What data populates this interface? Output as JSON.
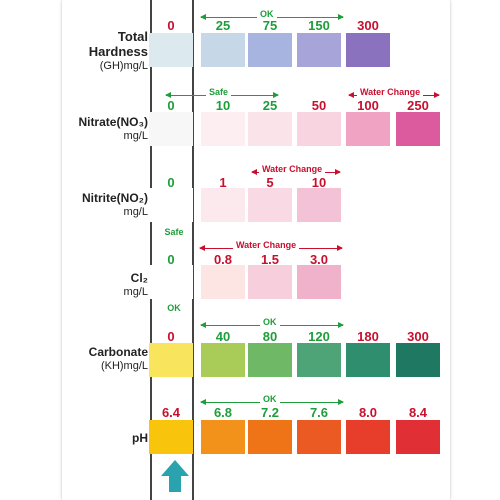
{
  "colors": {
    "green_text": "#1e9e3a",
    "red_text": "#c8102e",
    "arrow": "#2aa3ae"
  },
  "params": {
    "gh": {
      "name": "Total",
      "name2": "Hardness",
      "unit": "(GH)mg/L"
    },
    "no3": {
      "name": "Nitrate(NO₃)",
      "unit": "mg/L"
    },
    "no2": {
      "name": "Nitrite(NO₂)",
      "unit": "mg/L"
    },
    "cl": {
      "name": "Cl₂",
      "unit": "mg/L"
    },
    "kh": {
      "name": "Carbonate",
      "unit": "(KH)mg/L"
    },
    "ph": {
      "name": "pH"
    }
  },
  "labels": {
    "ok": "OK",
    "safe": "Safe",
    "water_change": "Water Change"
  },
  "rows": {
    "gh": {
      "values": [
        "0",
        "25",
        "75",
        "150",
        "300"
      ],
      "value_colors": [
        "red",
        "green",
        "green",
        "green",
        "red"
      ],
      "swatches": [
        "#dce9ef",
        "#c6d7e8",
        "#a8b4e0",
        "#a7a4da",
        "#8b72be"
      ]
    },
    "no3": {
      "values": [
        "0",
        "10",
        "25",
        "50",
        "100",
        "250"
      ],
      "value_colors": [
        "green",
        "green",
        "green",
        "red",
        "red",
        "red"
      ],
      "swatches": [
        "#f7f7f7",
        "#fdeef2",
        "#fbe3ea",
        "#f8d3e0",
        "#f0a3c3",
        "#dc5b9f"
      ]
    },
    "no2": {
      "values": [
        "0",
        "1",
        "5",
        "10"
      ],
      "value_colors": [
        "green",
        "red",
        "red",
        "red"
      ],
      "swatches": [
        "#ffffff",
        "#fbe9ee",
        "#f9d9e4",
        "#f4c2d7"
      ]
    },
    "cl": {
      "values": [
        "0",
        "0.8",
        "1.5",
        "3.0"
      ],
      "value_colors": [
        "green",
        "red",
        "red",
        "red"
      ],
      "swatches": [
        "#ffffff",
        "#fde5e4",
        "#f7cfdc",
        "#f0b2cb"
      ]
    },
    "kh": {
      "values": [
        "0",
        "40",
        "80",
        "120",
        "180",
        "300"
      ],
      "value_colors": [
        "red",
        "green",
        "green",
        "green",
        "red",
        "red"
      ],
      "swatches": [
        "#f9e55d",
        "#a9cb57",
        "#6fb865",
        "#4ea377",
        "#2e8e6e",
        "#1f7862"
      ]
    },
    "ph": {
      "values": [
        "6.4",
        "6.8",
        "7.2",
        "7.6",
        "8.0",
        "8.4"
      ],
      "value_colors": [
        "red",
        "green",
        "green",
        "green",
        "red",
        "red"
      ],
      "swatches": [
        "#f9c50c",
        "#f3921a",
        "#ef7418",
        "#ea5a22",
        "#e73e2b",
        "#e12f36"
      ]
    }
  }
}
